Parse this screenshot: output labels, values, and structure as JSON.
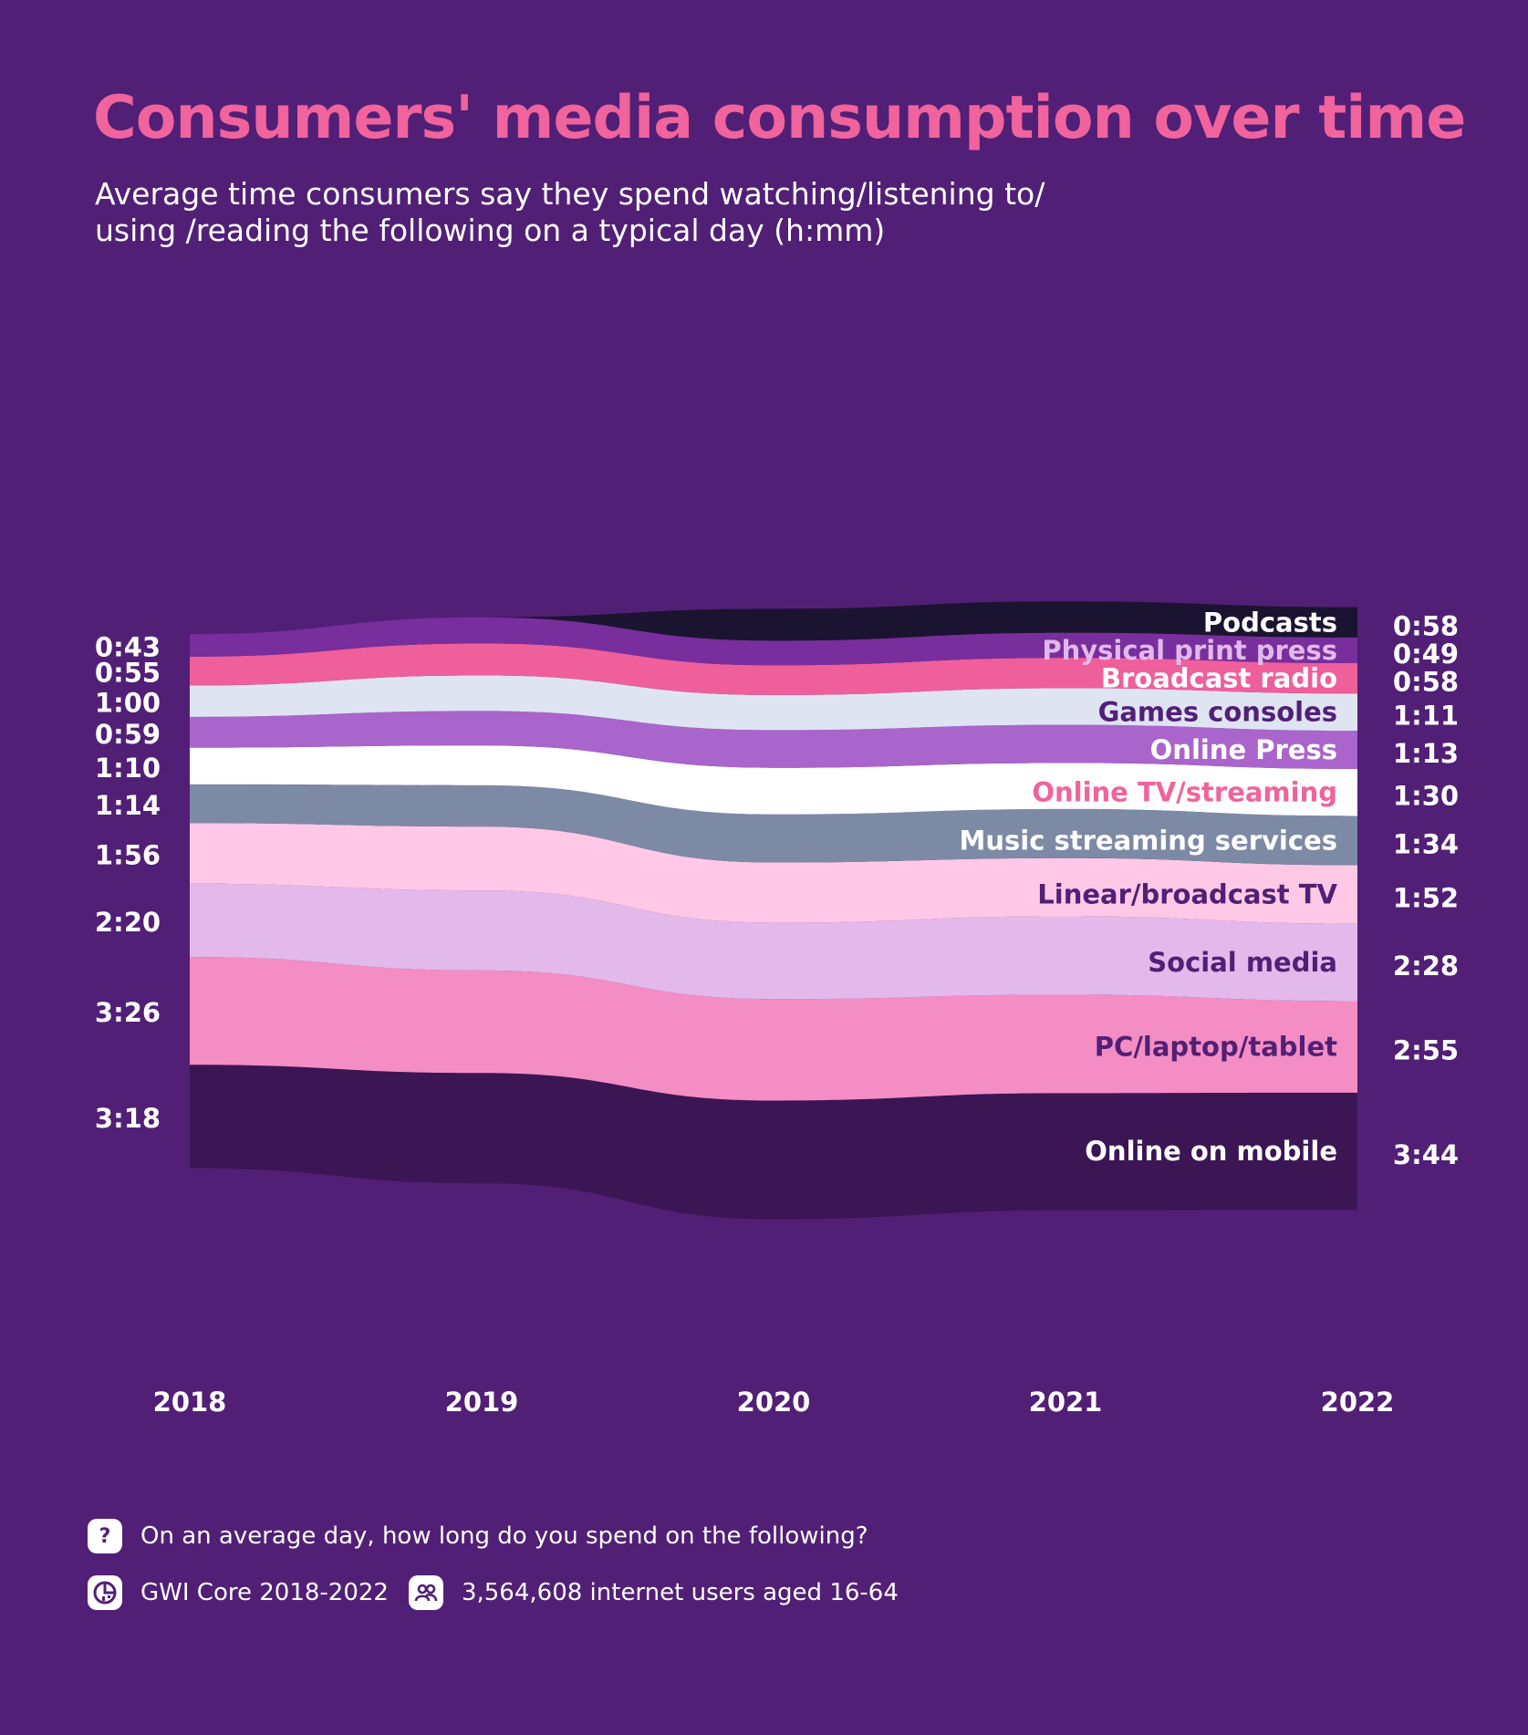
{
  "title": "Consumers' media consumption over time",
  "subtitle_line1": "Average time consumers say they spend watching/listening to/",
  "subtitle_line2": "using /reading the following on a typical day (h:mm)",
  "colors": {
    "background": "#521F76",
    "title": "#F0639D",
    "text": "#FFFFFF"
  },
  "chart_data": {
    "type": "area",
    "subtype": "streamgraph",
    "x": [
      "2018",
      "2019",
      "2020",
      "2021",
      "2022"
    ],
    "unit": "h:mm",
    "series": [
      {
        "name": "Online on mobile",
        "color": "#3C1555",
        "label_color": "#FFFFFF",
        "start_label": "3:18",
        "end_label": "3:44",
        "values": [
          198,
          211,
          227,
          224,
          224
        ]
      },
      {
        "name": "PC/laptop/tablet",
        "color": "#F48DC3",
        "label_color": "#521F76",
        "start_label": "3:26",
        "end_label": "2:55",
        "values": [
          206,
          196,
          194,
          188,
          175
        ]
      },
      {
        "name": "Social media",
        "color": "#E2B9EA",
        "label_color": "#521F76",
        "start_label": "2:20",
        "end_label": "2:28",
        "values": [
          140,
          153,
          146,
          150,
          148
        ]
      },
      {
        "name": "Linear/broadcast TV",
        "color": "#FFC8E6",
        "label_color": "#521F76",
        "start_label": "1:56",
        "end_label": "1:52",
        "values": [
          116,
          122,
          115,
          111,
          112
        ]
      },
      {
        "name": "Music streaming services",
        "color": "#7C8AA5",
        "label_color": "#FFFFFF",
        "start_label": "1:14",
        "end_label": "1:34",
        "values": [
          74,
          79,
          92,
          94,
          94
        ]
      },
      {
        "name": "Online TV/streaming",
        "color": "#FFFFFF",
        "label_color": "#F0639D",
        "start_label": "1:10",
        "end_label": "1:30",
        "values": [
          70,
          76,
          89,
          88,
          90
        ]
      },
      {
        "name": "Online Press",
        "color": "#A965CB",
        "label_color": "#FFFFFF",
        "start_label": "0:59",
        "end_label": "1:13",
        "values": [
          59,
          66,
          72,
          73,
          73
        ]
      },
      {
        "name": "Games consoles",
        "color": "#DFE4F3",
        "label_color": "#521F76",
        "start_label": "1:00",
        "end_label": "1:11",
        "values": [
          60,
          68,
          67,
          70,
          71
        ]
      },
      {
        "name": "Broadcast radio",
        "color": "#EF5F9C",
        "label_color": "#FFFFFF",
        "start_label": "0:55",
        "end_label": "0:58",
        "values": [
          55,
          61,
          57,
          58,
          58
        ]
      },
      {
        "name": "Physical print press",
        "color": "#782E9C",
        "label_color": "#E2B9EA",
        "start_label": "0:43",
        "end_label": "0:49",
        "values": [
          43,
          50,
          47,
          48,
          49
        ]
      },
      {
        "name": "Podcasts",
        "color": "#1A1430",
        "label_color": "#FFFFFF",
        "start_label": "",
        "end_label": "0:58",
        "values": [
          0,
          0,
          61,
          60,
          58
        ]
      }
    ]
  },
  "footer": {
    "question": "On an average day, how long do you spend on the following?",
    "source": "GWI Core 2018-2022",
    "sample": "3,564,608 internet users aged 16-64",
    "question_icon_glyph": "?",
    "question_icon": "question-icon",
    "source_icon": "gwi-chart-icon",
    "sample_icon": "people-icon"
  }
}
